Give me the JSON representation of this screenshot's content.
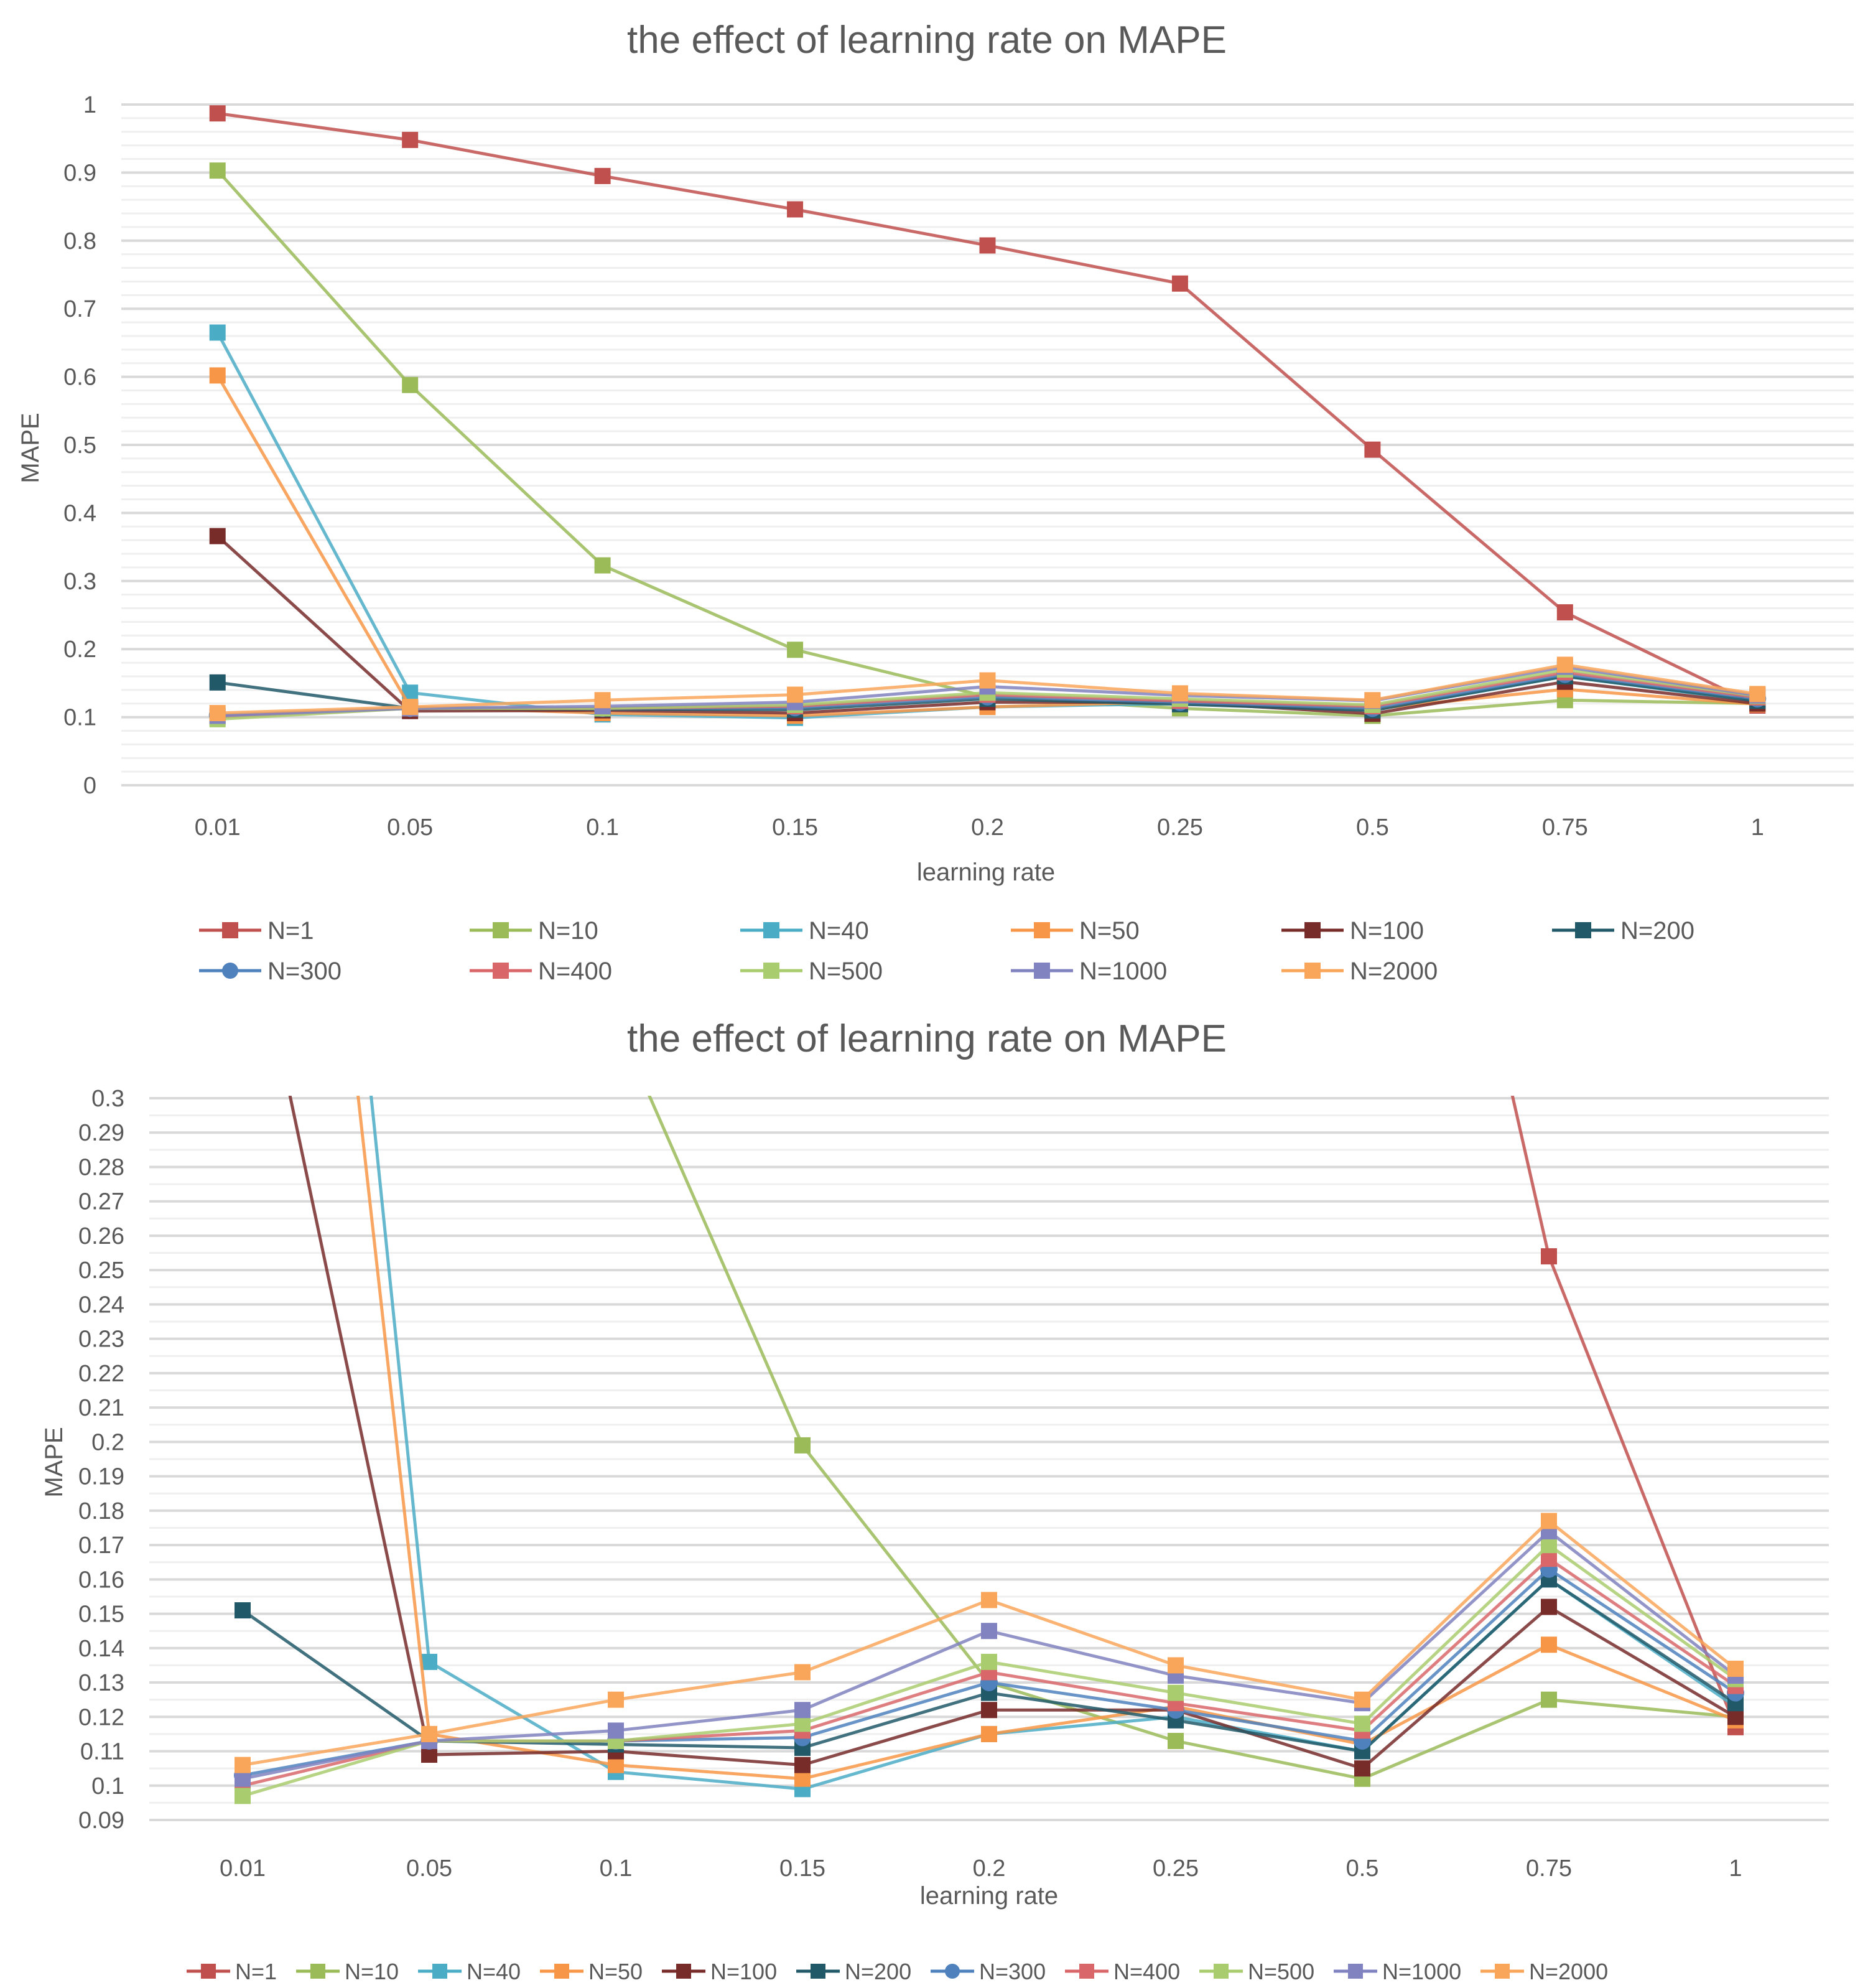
{
  "chart_data": [
    {
      "type": "line",
      "title": "the effect of learning rate on MAPE",
      "xlabel": "learning rate",
      "ylabel": "MAPE",
      "categories": [
        "0.01",
        "0.05",
        "0.1",
        "0.15",
        "0.2",
        "0.25",
        "0.5",
        "0.75",
        "1"
      ],
      "ylim": [
        0,
        1
      ],
      "yticks": [
        "0",
        "0.1",
        "0.2",
        "0.3",
        "0.4",
        "0.5",
        "0.6",
        "0.7",
        "0.8",
        "0.9",
        "1"
      ],
      "grid": true,
      "legend_position": "bottom",
      "series": [
        {
          "name": "N=1",
          "color": "#C0504D",
          "marker": "square",
          "values": [
            0.987,
            0.948,
            0.895,
            0.846,
            0.793,
            0.737,
            0.493,
            0.254,
            0.117
          ]
        },
        {
          "name": "N=10",
          "color": "#9BBB59",
          "marker": "square",
          "values": [
            0.903,
            0.588,
            0.323,
            0.199,
            0.13,
            0.113,
            0.102,
            0.125,
            0.12
          ]
        },
        {
          "name": "N=40",
          "color": "#4BACC6",
          "marker": "square",
          "values": [
            0.665,
            0.136,
            0.104,
            0.099,
            0.115,
            0.12,
            0.11,
            0.16,
            0.123
          ]
        },
        {
          "name": "N=50",
          "color": "#F79646",
          "marker": "square",
          "values": [
            0.602,
            0.115,
            0.106,
            0.102,
            0.115,
            0.123,
            0.112,
            0.141,
            0.119
          ]
        },
        {
          "name": "N=100",
          "color": "#772C2A",
          "marker": "square",
          "values": [
            0.366,
            0.109,
            0.11,
            0.106,
            0.122,
            0.122,
            0.105,
            0.152,
            0.12
          ]
        },
        {
          "name": "N=200",
          "color": "#215968",
          "marker": "square",
          "values": [
            0.151,
            0.113,
            0.112,
            0.111,
            0.127,
            0.119,
            0.11,
            0.16,
            0.124
          ]
        },
        {
          "name": "N=300",
          "color": "#4F81BD",
          "marker": "circle",
          "values": [
            0.103,
            0.113,
            0.113,
            0.114,
            0.13,
            0.122,
            0.113,
            0.163,
            0.127
          ]
        },
        {
          "name": "N=400",
          "color": "#D9676A",
          "marker": "square",
          "values": [
            0.1,
            0.113,
            0.113,
            0.116,
            0.133,
            0.124,
            0.116,
            0.166,
            0.129
          ]
        },
        {
          "name": "N=500",
          "color": "#A9CD6E",
          "marker": "square",
          "values": [
            0.097,
            0.113,
            0.113,
            0.118,
            0.136,
            0.127,
            0.118,
            0.17,
            0.131
          ]
        },
        {
          "name": "N=1000",
          "color": "#8083C0",
          "marker": "square",
          "values": [
            0.102,
            0.113,
            0.116,
            0.122,
            0.145,
            0.132,
            0.124,
            0.174,
            0.132
          ]
        },
        {
          "name": "N=2000",
          "color": "#F9A65A",
          "marker": "square",
          "values": [
            0.106,
            0.115,
            0.125,
            0.133,
            0.154,
            0.135,
            0.125,
            0.177,
            0.134
          ]
        }
      ]
    },
    {
      "type": "line",
      "title": "the effect of learning rate on MAPE",
      "xlabel": "learning rate",
      "ylabel": "MAPE",
      "categories": [
        "0.01",
        "0.05",
        "0.1",
        "0.15",
        "0.2",
        "0.25",
        "0.5",
        "0.75",
        "1"
      ],
      "ylim": [
        0.09,
        0.3
      ],
      "yticks": [
        "0.09",
        "0.1",
        "0.11",
        "0.12",
        "0.13",
        "0.14",
        "0.15",
        "0.16",
        "0.17",
        "0.18",
        "0.19",
        "0.2",
        "0.21",
        "0.22",
        "0.23",
        "0.24",
        "0.25",
        "0.26",
        "0.27",
        "0.28",
        "0.29",
        "0.3"
      ],
      "grid": true,
      "legend_position": "bottom",
      "series_ref": "same as chart 1 (zoomed y-range)"
    }
  ]
}
